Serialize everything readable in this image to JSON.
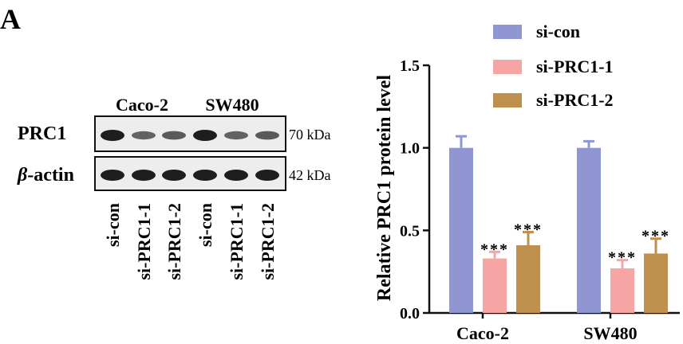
{
  "panel_label": "A",
  "blot": {
    "cell_lines": [
      "Caco-2",
      "SW480"
    ],
    "rows": [
      {
        "label": "PRC1",
        "kda": "70 kDa",
        "intensity": [
          1.0,
          0.55,
          0.6,
          1.0,
          0.55,
          0.6
        ]
      },
      {
        "label_prefix": "β",
        "label_suffix": "-actin",
        "kda": "42 kDa",
        "intensity": [
          1.0,
          1.0,
          1.0,
          1.0,
          1.0,
          1.0
        ]
      }
    ],
    "lanes": [
      "si-con",
      "si-PRC1-1",
      "si-PRC1-2",
      "si-con",
      "si-PRC1-1",
      "si-PRC1-2"
    ]
  },
  "chart_data": {
    "type": "bar",
    "categories": [
      "Caco-2",
      "SW480"
    ],
    "series": [
      {
        "name": "si-con",
        "color": "#8f96d1",
        "values": [
          1.0,
          1.0
        ],
        "errors": [
          0.07,
          0.04
        ],
        "annotations": [
          "",
          ""
        ]
      },
      {
        "name": "si-PRC1-1",
        "color": "#f7a4a4",
        "values": [
          0.33,
          0.27
        ],
        "errors": [
          0.04,
          0.05
        ],
        "annotations": [
          "***",
          "***"
        ]
      },
      {
        "name": "si-PRC1-2",
        "color": "#bf8f4e",
        "values": [
          0.41,
          0.36
        ],
        "errors": [
          0.08,
          0.09
        ],
        "annotations": [
          "***",
          "***"
        ]
      }
    ],
    "ylabel": "Relative PRC1 protein level",
    "xlabel": "",
    "ylim": [
      0,
      1.5
    ],
    "yticks": [
      "0.0",
      "0.5",
      "1.0",
      "1.5"
    ],
    "legend_position": "top",
    "grid": false
  }
}
